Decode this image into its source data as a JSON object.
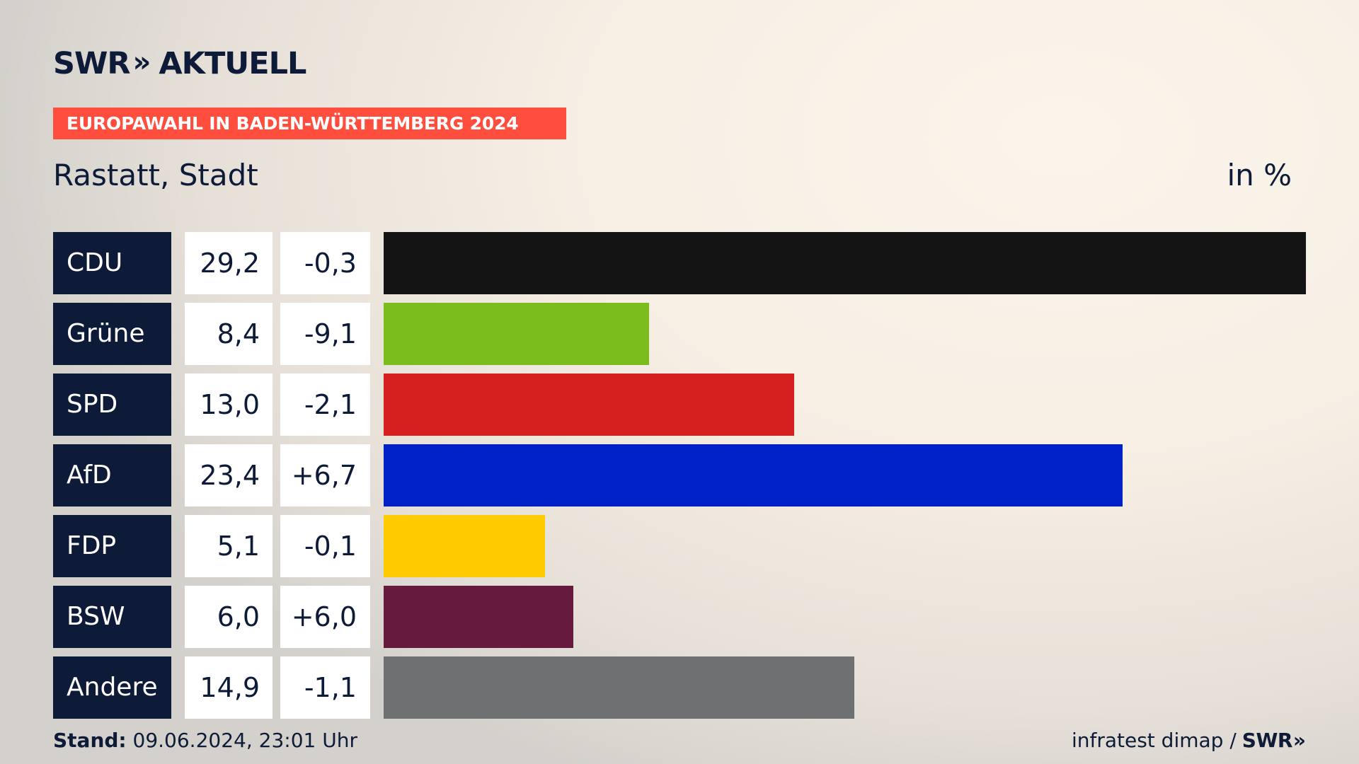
{
  "header": {
    "logo_swr": "SWR",
    "logo_chevron": "»",
    "logo_aktuell": "AKTUELL",
    "banner": "EUROPAWAHL IN BADEN-WÜRTTEMBERG 2024"
  },
  "chart_data": {
    "type": "bar",
    "orientation": "horizontal",
    "title": "EUROPAWAHL IN BADEN-WÜRTTEMBERG 2024",
    "subtitle": "Rastatt, Stadt",
    "unit": "in %",
    "categories": [
      "CDU",
      "Grüne",
      "SPD",
      "AfD",
      "FDP",
      "BSW",
      "Andere"
    ],
    "values": [
      29.2,
      8.4,
      13.0,
      23.4,
      5.1,
      6.0,
      14.9
    ],
    "values_display": [
      "29,2",
      "8,4",
      "13,0",
      "23,4",
      "5,1",
      "6,0",
      "14,9"
    ],
    "diff_display": [
      "-0,3",
      "-9,1",
      "-2,1",
      "+6,7",
      "-0,1",
      "+6,0",
      "-1,1"
    ],
    "colors": [
      "#141414",
      "#7abd1c",
      "#d61f1f",
      "#0021c8",
      "#ffcc00",
      "#661a3e",
      "#6f7072"
    ],
    "xlim": [
      0,
      29.2
    ]
  },
  "footer": {
    "stand_label": "Stand:",
    "stand_value": " 09.06.2024, 23:01 Uhr",
    "source": "infratest dimap /",
    "source_swr": "SWR",
    "source_chevron": "»"
  }
}
